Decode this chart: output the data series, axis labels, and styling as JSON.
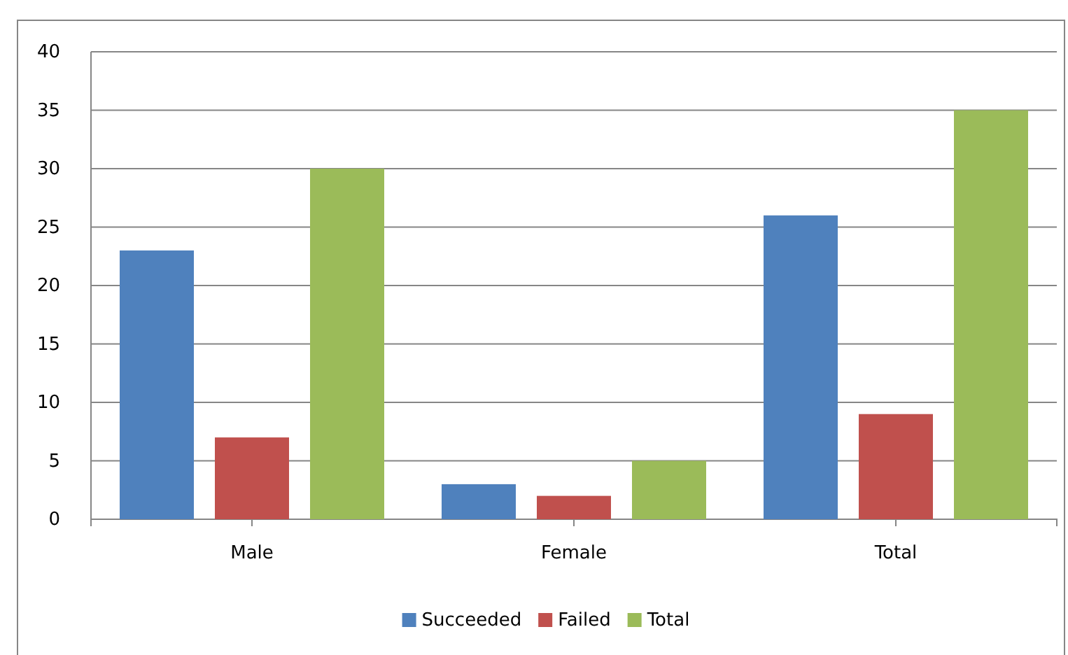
{
  "chart_data": {
    "type": "bar",
    "categories": [
      "Male",
      "Female",
      "Total"
    ],
    "series": [
      {
        "name": "Succeeded",
        "color": "#4f81bd",
        "values": [
          23,
          3,
          26
        ]
      },
      {
        "name": "Failed",
        "color": "#c0504d",
        "values": [
          7,
          2,
          9
        ]
      },
      {
        "name": "Total",
        "color": "#9bbb59",
        "values": [
          30,
          5,
          35
        ]
      }
    ],
    "ylim": [
      0,
      40
    ],
    "yticks": [
      0,
      5,
      10,
      15,
      20,
      25,
      30,
      35,
      40
    ],
    "grid": "y",
    "legend": "bottom"
  }
}
